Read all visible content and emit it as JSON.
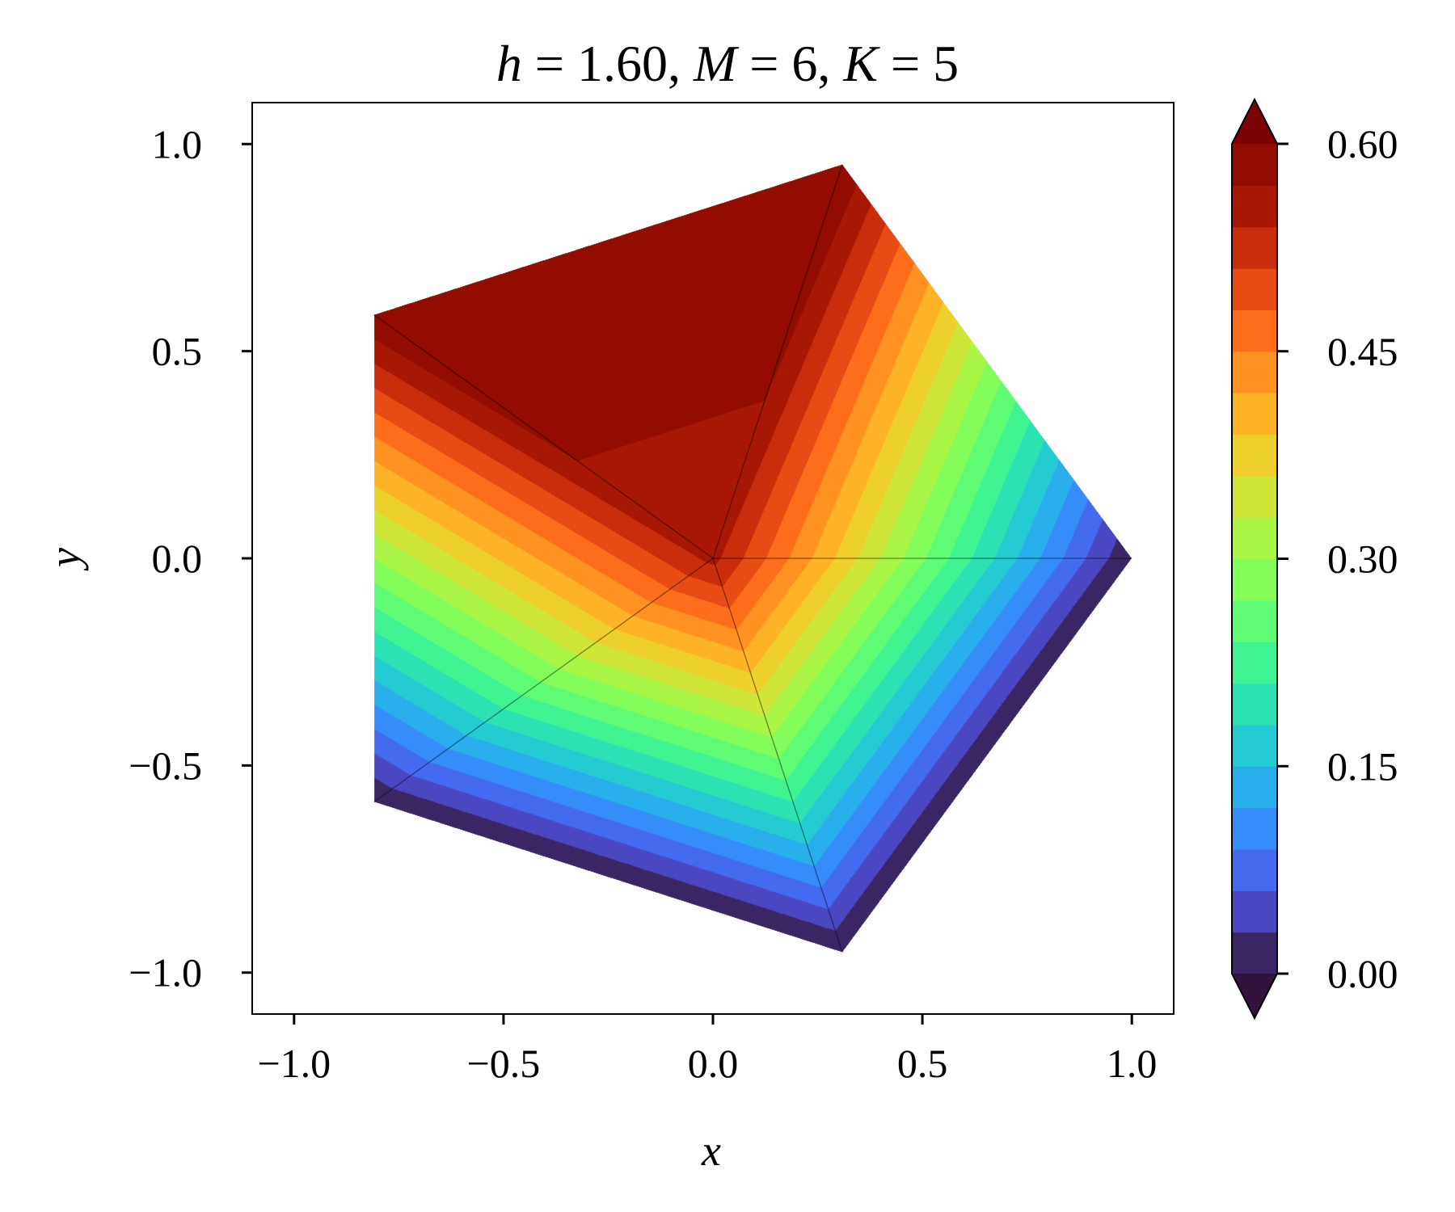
{
  "chart_data": {
    "type": "heatmap",
    "title": {
      "h_symbol": "h",
      "h_value": "1.60",
      "m_symbol": "M",
      "m_value": "6",
      "k_symbol": "K",
      "k_value": "5"
    },
    "xlabel": "x",
    "ylabel": "y",
    "xlim": [
      -1.1,
      1.1
    ],
    "ylim": [
      -1.1,
      1.1
    ],
    "x_ticks": [
      -1.0,
      -0.5,
      0.0,
      0.5,
      1.0
    ],
    "x_tick_labels": [
      "−1.0",
      "−0.5",
      "0.0",
      "0.5",
      "1.0"
    ],
    "y_ticks": [
      -1.0,
      -0.5,
      0.0,
      0.5,
      1.0
    ],
    "y_tick_labels": [
      "−1.0",
      "−0.5",
      "0.0",
      "0.5",
      "1.0"
    ],
    "domain": "regular pentagon, circumradius 1, vertex at (1, 0)",
    "pentagon_vertices": [
      [
        1.0,
        0.0
      ],
      [
        0.309,
        0.951
      ],
      [
        -0.809,
        0.588
      ],
      [
        -0.809,
        -0.588
      ],
      [
        0.309,
        -0.951
      ]
    ],
    "center": [
      0.0,
      0.0
    ],
    "field_values": {
      "center": 0.55,
      "vertex_right": 0.0,
      "vertex_top": 0.6,
      "vertex_upper_left": 0.6,
      "vertex_lower_left": 0.0,
      "vertex_bottom": 0.0
    },
    "grid": false,
    "colorbar": {
      "min": 0.0,
      "max": 0.6,
      "extend": "both",
      "levels": 20,
      "ticks": [
        0.0,
        0.15,
        0.3,
        0.45,
        0.6
      ],
      "tick_labels": [
        "0.00",
        "0.15",
        "0.30",
        "0.45",
        "0.60"
      ],
      "colormap": "turbo",
      "under_color": "#30123b",
      "over_color": "#7a0403"
    },
    "mesh_line_color": "#000000"
  }
}
